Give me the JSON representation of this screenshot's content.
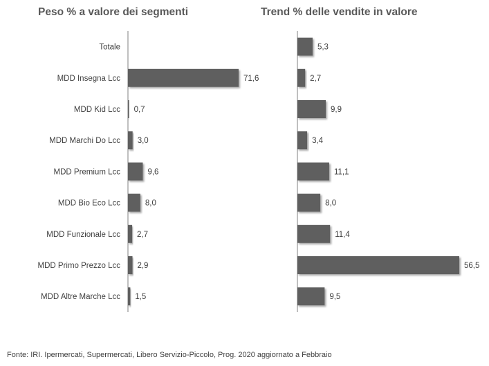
{
  "chart_data": [
    {
      "type": "bar",
      "orientation": "horizontal",
      "title": "Peso % a valore dei segmenti",
      "categories": [
        "Totale",
        "MDD Insegna Lcc",
        "MDD Kid Lcc",
        "MDD Marchi Do Lcc",
        "MDD Premium Lcc",
        "MDD Bio Eco Lcc",
        "MDD Funzionale Lcc",
        "MDD Primo Prezzo Lcc",
        "MDD Altre Marche Lcc"
      ],
      "values": [
        null,
        71.6,
        0.7,
        3.0,
        9.6,
        8.0,
        2.7,
        2.9,
        1.5
      ],
      "labels": [
        "",
        "71,6",
        "0,7",
        "3,0",
        "9,6",
        "8,0",
        "2,7",
        "2,9",
        "1,5"
      ],
      "bar_color": "#5f5f5f",
      "grid": false,
      "legend": "none"
    },
    {
      "type": "bar",
      "orientation": "horizontal",
      "title": "Trend % delle vendite in valore",
      "categories": [
        "Totale",
        "MDD Insegna Lcc",
        "MDD Kid Lcc",
        "MDD Marchi Do Lcc",
        "MDD Premium Lcc",
        "MDD Bio Eco Lcc",
        "MDD Funzionale Lcc",
        "MDD Primo Prezzo Lcc",
        "MDD Altre Marche Lcc"
      ],
      "values": [
        5.3,
        2.7,
        9.9,
        3.4,
        11.1,
        8.0,
        11.4,
        56.5,
        9.5
      ],
      "labels": [
        "5,3",
        "2,7",
        "9,9",
        "3,4",
        "11,1",
        "8,0",
        "11,4",
        "56,5",
        "9,5"
      ],
      "bar_color": "#5f5f5f",
      "grid": false,
      "legend": "none"
    }
  ],
  "source": "Fonte: IRI. Ipermercati, Supermercati, Libero Servizio-Piccolo, Prog. 2020 aggiornato a Febbraio"
}
